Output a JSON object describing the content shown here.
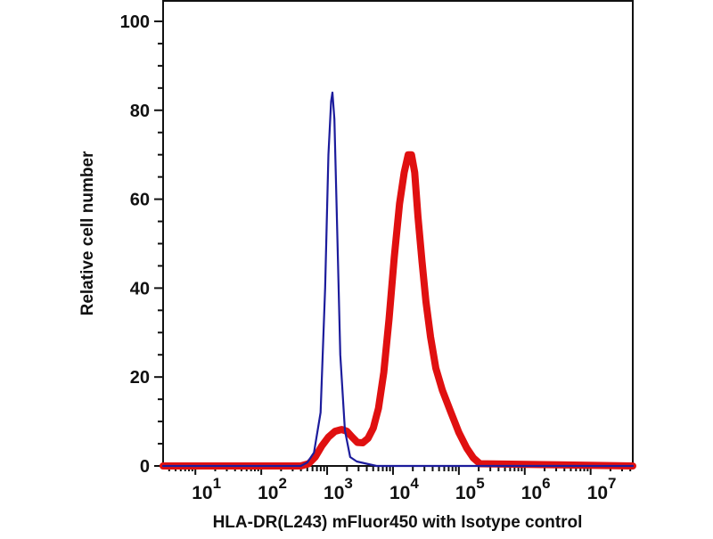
{
  "chart_data": {
    "type": "line",
    "title": "",
    "xlabel": "HLA-DR(L243) mFluor450 with Isotype control",
    "ylabel": "Relative cell number",
    "xscale": "log10",
    "xlim_log10": [
      0.51,
      7.64
    ],
    "ylim": [
      0,
      104.6
    ],
    "y_ticks": [
      0,
      20,
      40,
      60,
      80,
      100
    ],
    "y_tick_labels": [
      "0",
      "20",
      "40",
      "60",
      "80",
      "100"
    ],
    "x_ticks_log10": [
      1,
      2,
      3,
      4,
      5,
      6,
      7
    ],
    "x_tick_labels": [
      {
        "base": "10",
        "exp": "1"
      },
      {
        "base": "10",
        "exp": "2"
      },
      {
        "base": "10",
        "exp": "3"
      },
      {
        "base": "10",
        "exp": "4"
      },
      {
        "base": "10",
        "exp": "5"
      },
      {
        "base": "10",
        "exp": "6"
      },
      {
        "base": "10",
        "exp": "7"
      }
    ],
    "grid": false,
    "series": [
      {
        "name": "Isotype control",
        "color": "#1c1c9c",
        "x_log10": [
          0.51,
          2.6,
          2.7,
          2.8,
          2.9,
          2.97,
          3.02,
          3.06,
          3.08,
          3.11,
          3.15,
          3.2,
          3.27,
          3.35,
          3.45,
          3.6,
          3.75,
          7.64
        ],
        "values": [
          0,
          0,
          0.8,
          3,
          12,
          40,
          70,
          82,
          84,
          78,
          55,
          25,
          8,
          2,
          1,
          0.5,
          0,
          0
        ]
      },
      {
        "name": "HLA-DR(L243) mFluor450",
        "color": "#e01010",
        "x_log10": [
          0.51,
          2.6,
          2.72,
          2.82,
          2.92,
          3.02,
          3.12,
          3.22,
          3.3,
          3.38,
          3.46,
          3.54,
          3.62,
          3.7,
          3.78,
          3.86,
          3.94,
          4.02,
          4.1,
          4.17,
          4.23,
          4.28,
          4.33,
          4.38,
          4.44,
          4.5,
          4.57,
          4.65,
          4.75,
          4.88,
          5.0,
          5.12,
          5.22,
          5.32,
          7.64
        ],
        "values": [
          0,
          0,
          0.5,
          2,
          4.5,
          6.5,
          7.8,
          8.2,
          7.8,
          6.5,
          5.3,
          5.2,
          6.2,
          8.5,
          13,
          21,
          33,
          47,
          59,
          66,
          70,
          70,
          66,
          56,
          46,
          37,
          29,
          22,
          17,
          12,
          7.5,
          4,
          1.8,
          0.5,
          0
        ]
      }
    ]
  }
}
